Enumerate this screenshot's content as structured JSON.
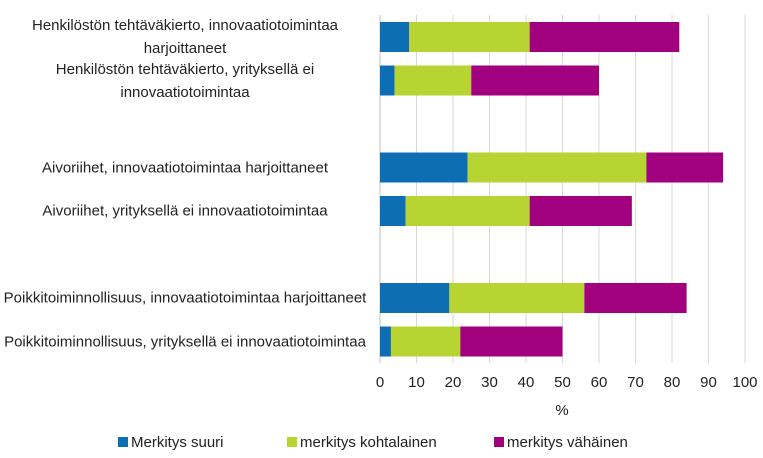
{
  "chart_data": {
    "type": "stacked-barh",
    "categories": [
      "Henkilöstön tehtäväkierto, innovaatiotoimintaa harjoittaneet",
      "Henkilöstön tehtäväkierto, yrityksellä ei innovaatiotoimintaa",
      "Aivoriihet, innovaatiotoimintaa harjoittaneet",
      "Aivoriihet, yrityksellä ei innovaatiotoimintaa",
      "Poikkitoiminnollisuus, innovaatiotoimintaa harjoittaneet",
      "Poikkitoiminnollisuus, yrityksellä ei innovaatiotoimintaa"
    ],
    "series": [
      {
        "name": "Merkitys suuri",
        "color": "#0e6eb3",
        "values": [
          8,
          4,
          24,
          7,
          19,
          3
        ]
      },
      {
        "name": "merkitys kohtalainen",
        "color": "#b8d432",
        "values": [
          33,
          21,
          49,
          34,
          37,
          19
        ]
      },
      {
        "name": "merkitys vähäinen",
        "color": "#a1007e",
        "values": [
          41,
          35,
          21,
          28,
          28,
          28
        ]
      }
    ],
    "xlabel": "%",
    "xlim": [
      0,
      100
    ],
    "xticks": [
      0,
      10,
      20,
      30,
      40,
      50,
      60,
      70,
      80,
      90,
      100
    ],
    "grid": true
  }
}
